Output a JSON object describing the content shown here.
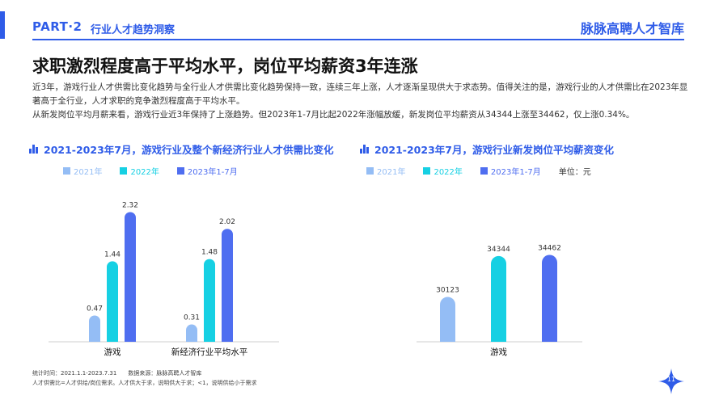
{
  "header": {
    "part": "PART·2",
    "section": "行业人才趋势洞察",
    "brand": "脉脉高聘人才智库"
  },
  "title": "求职激烈程度高于平均水平，岗位平均薪资3年连涨",
  "description": [
    "近3年，游戏行业人才供需比变化趋势与全行业人才供需比变化趋势保持一致，连续三年上涨，人才逐渐呈现供大于求态势。值得关注的是，游戏行业的人才供需比在2023年显著高于全行业，人才求职的竞争激烈程度高于平均水平。",
    "从新发岗位平均月薪来看，游戏行业近3年保持了上涨趋势。但2023年1-7月比起2022年涨幅放缓，新发岗位平均薪资从34344上涨至34462，仅上涨0.34%。"
  ],
  "colors": {
    "accent": "#2f5ce8",
    "s2021": "#94bdf5",
    "s2022": "#16d0e3",
    "s2023": "#4f6ef0"
  },
  "legend": {
    "s2021": "2021年",
    "s2022": "2022年",
    "s2023": "2023年1-7月",
    "unit": "单位：元"
  },
  "chart_data": [
    {
      "type": "bar",
      "title": "2021-2023年7月，游戏行业及整个新经济行业人才供需比变化",
      "categories": [
        "游戏",
        "新经济行业平均水平"
      ],
      "series": [
        {
          "name": "2021年",
          "values": [
            0.47,
            0.31
          ]
        },
        {
          "name": "2022年",
          "values": [
            1.44,
            1.48
          ]
        },
        {
          "name": "2023年1-7月",
          "values": [
            2.32,
            2.02
          ]
        }
      ],
      "ylim": [
        0,
        2.5
      ],
      "grid": false,
      "legend": "top-left"
    },
    {
      "type": "bar",
      "title": "2021-2023年7月，游戏行业新发岗位平均薪资变化",
      "categories": [
        "游戏"
      ],
      "series": [
        {
          "name": "2021年",
          "values": [
            30123
          ]
        },
        {
          "name": "2022年",
          "values": [
            34344
          ]
        },
        {
          "name": "2023年1-7月",
          "values": [
            34462
          ]
        }
      ],
      "ylim": [
        25500,
        35500
      ],
      "unit": "单位：元",
      "grid": false,
      "legend": "top-left"
    }
  ],
  "footnotes": {
    "line1": "统计时间：2021.1.1-2023.7.31　　数据来源：脉脉高聘人才智库",
    "line2": "人才供需比=人才供给/岗位需求。人才供大于求，说明供大于求；<1，说明供给小于需求"
  },
  "page_number": "11"
}
